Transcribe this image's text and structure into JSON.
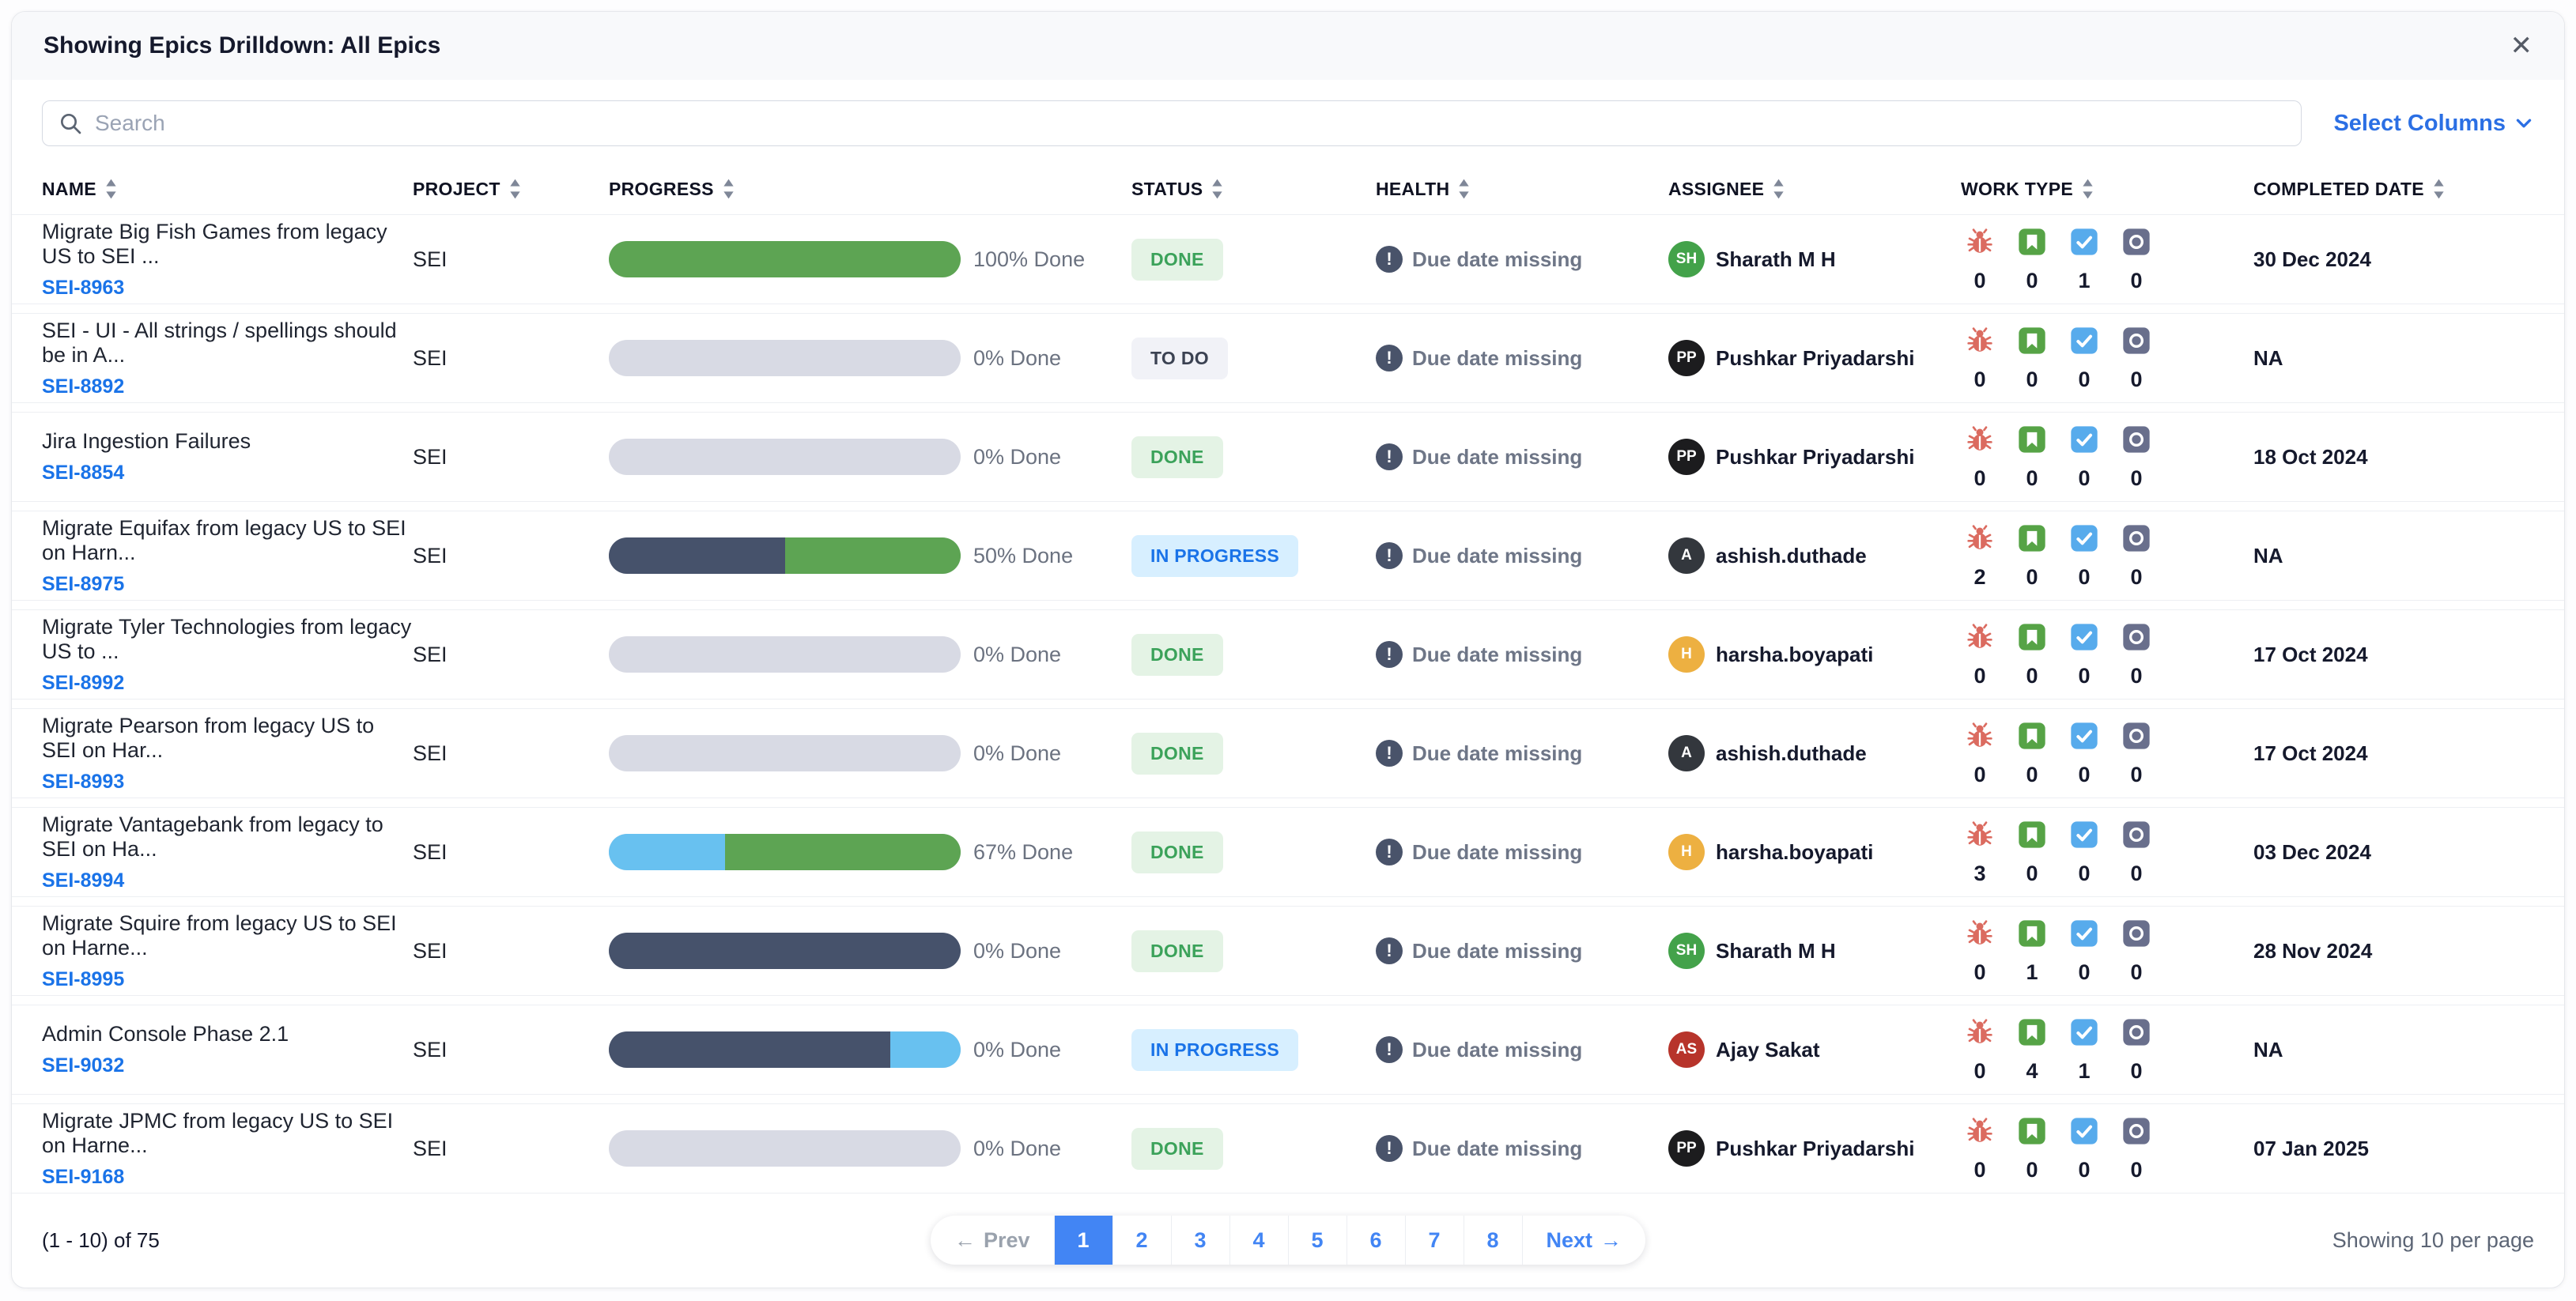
{
  "modal": {
    "title": "Showing Epics Drilldown: All Epics",
    "close_icon": "✕"
  },
  "toolbar": {
    "search_placeholder": "Search",
    "search_value": "",
    "select_columns_label": "Select Columns"
  },
  "colors": {
    "accent_blue": "#4285f4",
    "link_blue": "#1a73e8",
    "segment": {
      "green": "#5da453",
      "slate": "#46526b",
      "blue": "#68c1f0",
      "gray": "#d8dae4"
    },
    "badge": {
      "done_text": "#3ba25a",
      "todo_text": "#3b4252",
      "inprogress_text": "#1a73e8"
    }
  },
  "table": {
    "columns": [
      "NAME",
      "PROJECT",
      "PROGRESS",
      "STATUS",
      "HEALTH",
      "ASSIGNEE",
      "WORK TYPE",
      "COMPLETED DATE"
    ],
    "work_type_icons": [
      {
        "icon": "bug-icon",
        "color": "#db6b60"
      },
      {
        "icon": "story-icon",
        "color": "#56a346"
      },
      {
        "icon": "task-icon",
        "color": "#57abec"
      },
      {
        "icon": "other-icon",
        "color": "#696f8c"
      }
    ],
    "rows": [
      {
        "name": "Migrate Big Fish Games from legacy US to SEI ...",
        "id": "SEI-8963",
        "project": "SEI",
        "progress": {
          "label": "100% Done",
          "segments": [
            {
              "color": "green",
              "pct": 100
            }
          ]
        },
        "status": {
          "label": "DONE",
          "type": "done"
        },
        "health": "Due date missing",
        "assignee": {
          "initials": "SH",
          "color": "#43a24a",
          "name": "Sharath M H"
        },
        "work_counts": [
          0,
          0,
          1,
          0
        ],
        "completed": "30 Dec 2024"
      },
      {
        "name": "SEI - UI - All strings / spellings should be in A...",
        "id": "SEI-8892",
        "project": "SEI",
        "progress": {
          "label": "0% Done",
          "segments": []
        },
        "status": {
          "label": "TO DO",
          "type": "todo"
        },
        "health": "Due date missing",
        "assignee": {
          "initials": "PP",
          "color": "#1c1c1e",
          "name": "Pushkar Priyadarshi"
        },
        "work_counts": [
          0,
          0,
          0,
          0
        ],
        "completed": "NA"
      },
      {
        "name": "Jira Ingestion Failures",
        "id": "SEI-8854",
        "project": "SEI",
        "progress": {
          "label": "0% Done",
          "segments": []
        },
        "status": {
          "label": "DONE",
          "type": "done"
        },
        "health": "Due date missing",
        "assignee": {
          "initials": "PP",
          "color": "#1c1c1e",
          "name": "Pushkar Priyadarshi"
        },
        "work_counts": [
          0,
          0,
          0,
          0
        ],
        "completed": "18 Oct 2024"
      },
      {
        "name": "Migrate Equifax from legacy US to SEI on Harn...",
        "id": "SEI-8975",
        "project": "SEI",
        "progress": {
          "label": "50% Done",
          "segments": [
            {
              "color": "slate",
              "pct": 50
            },
            {
              "color": "green",
              "pct": 50
            }
          ]
        },
        "status": {
          "label": "IN PROGRESS",
          "type": "inprogress"
        },
        "health": "Due date missing",
        "assignee": {
          "initials": "A",
          "color": "#33373d",
          "name": "ashish.duthade"
        },
        "work_counts": [
          2,
          0,
          0,
          0
        ],
        "completed": "NA"
      },
      {
        "name": "Migrate Tyler Technologies from legacy US to ...",
        "id": "SEI-8992",
        "project": "SEI",
        "progress": {
          "label": "0% Done",
          "segments": []
        },
        "status": {
          "label": "DONE",
          "type": "done"
        },
        "health": "Due date missing",
        "assignee": {
          "initials": "H",
          "color": "#edb041",
          "name": "harsha.boyapati"
        },
        "work_counts": [
          0,
          0,
          0,
          0
        ],
        "completed": "17 Oct 2024"
      },
      {
        "name": "Migrate Pearson from legacy US to SEI on Har...",
        "id": "SEI-8993",
        "project": "SEI",
        "progress": {
          "label": "0% Done",
          "segments": []
        },
        "status": {
          "label": "DONE",
          "type": "done"
        },
        "health": "Due date missing",
        "assignee": {
          "initials": "A",
          "color": "#33373d",
          "name": "ashish.duthade"
        },
        "work_counts": [
          0,
          0,
          0,
          0
        ],
        "completed": "17 Oct 2024"
      },
      {
        "name": "Migrate Vantagebank from legacy to SEI on Ha...",
        "id": "SEI-8994",
        "project": "SEI",
        "progress": {
          "label": "67% Done",
          "segments": [
            {
              "color": "blue",
              "pct": 33
            },
            {
              "color": "green",
              "pct": 67
            }
          ]
        },
        "status": {
          "label": "DONE",
          "type": "done"
        },
        "health": "Due date missing",
        "assignee": {
          "initials": "H",
          "color": "#edb041",
          "name": "harsha.boyapati"
        },
        "work_counts": [
          3,
          0,
          0,
          0
        ],
        "completed": "03 Dec 2024"
      },
      {
        "name": "Migrate Squire from legacy US to SEI on Harne...",
        "id": "SEI-8995",
        "project": "SEI",
        "progress": {
          "label": "0% Done",
          "segments": [
            {
              "color": "slate",
              "pct": 100
            }
          ]
        },
        "status": {
          "label": "DONE",
          "type": "done"
        },
        "health": "Due date missing",
        "assignee": {
          "initials": "SH",
          "color": "#43a24a",
          "name": "Sharath M H"
        },
        "work_counts": [
          0,
          1,
          0,
          0
        ],
        "completed": "28 Nov 2024"
      },
      {
        "name": "Admin Console Phase 2.1",
        "id": "SEI-9032",
        "project": "SEI",
        "progress": {
          "label": "0% Done",
          "segments": [
            {
              "color": "slate",
              "pct": 80
            },
            {
              "color": "blue",
              "pct": 20
            }
          ]
        },
        "status": {
          "label": "IN PROGRESS",
          "type": "inprogress"
        },
        "health": "Due date missing",
        "assignee": {
          "initials": "AS",
          "color": "#b7342b",
          "name": "Ajay Sakat"
        },
        "work_counts": [
          0,
          4,
          1,
          0
        ],
        "completed": "NA"
      },
      {
        "name": "Migrate JPMC from legacy US to SEI on Harne...",
        "id": "SEI-9168",
        "project": "SEI",
        "progress": {
          "label": "0% Done",
          "segments": []
        },
        "status": {
          "label": "DONE",
          "type": "done"
        },
        "health": "Due date missing",
        "assignee": {
          "initials": "PP",
          "color": "#1c1c1e",
          "name": "Pushkar Priyadarshi"
        },
        "work_counts": [
          0,
          0,
          0,
          0
        ],
        "completed": "07 Jan 2025"
      }
    ]
  },
  "footer": {
    "range_text": "(1 - 10) of 75",
    "prev_label": "Prev",
    "prev_arrow": "←",
    "pages": [
      "1",
      "2",
      "3",
      "4",
      "5",
      "6",
      "7",
      "8"
    ],
    "active_page": "1",
    "next_label": "Next",
    "next_arrow": "→",
    "per_page_text": "Showing 10 per page"
  }
}
